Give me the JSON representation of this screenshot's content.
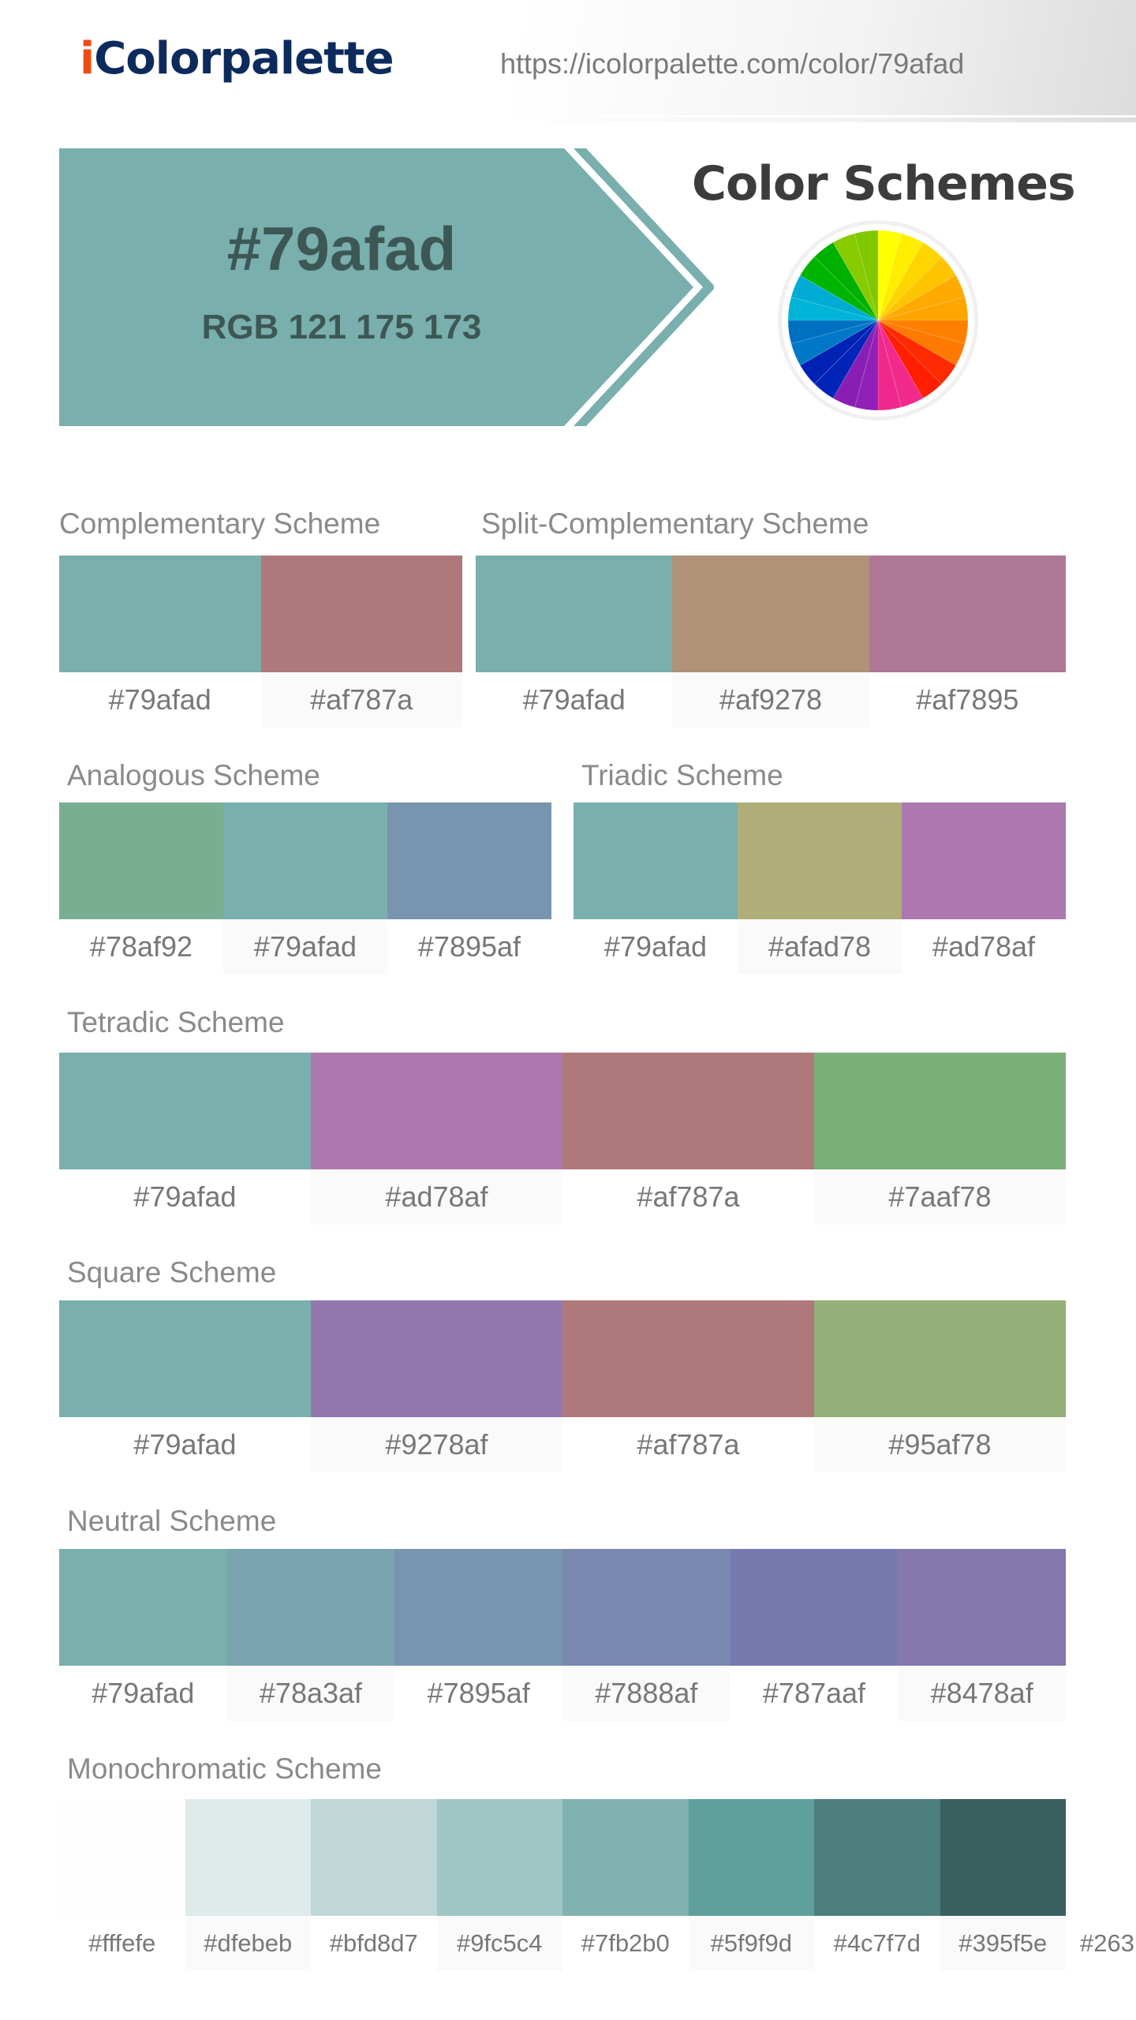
{
  "header": {
    "logo_prefix": "i",
    "logo_rest": "Colorpalette",
    "url": "https://icolorpalette.com/color/79afad"
  },
  "hero": {
    "hex": "#79afad",
    "rgb": "RGB 121 175 173",
    "color": "#79afad",
    "text_color": "#3d5755"
  },
  "color_schemes_title": "Color Schemes",
  "wheel_icon": "color-wheel-icon",
  "schemes": {
    "complementary": {
      "label": "Complementary Scheme",
      "colors": [
        "#79afad",
        "#af787a"
      ]
    },
    "split_complementary": {
      "label": "Split-Complementary Scheme",
      "colors": [
        "#79afad",
        "#af9278",
        "#af7895"
      ]
    },
    "analogous": {
      "label": "Analogous Scheme",
      "colors": [
        "#78af92",
        "#79afad",
        "#7895af"
      ]
    },
    "triadic": {
      "label": "Triadic Scheme",
      "colors": [
        "#79afad",
        "#afad78",
        "#ad78af"
      ]
    },
    "tetradic": {
      "label": "Tetradic Scheme",
      "colors": [
        "#79afad",
        "#ad78af",
        "#af787a",
        "#7aaf78"
      ]
    },
    "square": {
      "label": "Square Scheme",
      "colors": [
        "#79afad",
        "#9278af",
        "#af787a",
        "#95af78"
      ]
    },
    "neutral": {
      "label": "Neutral Scheme",
      "colors": [
        "#79afad",
        "#78a3af",
        "#7895af",
        "#7888af",
        "#787aaf",
        "#8478af"
      ]
    },
    "monochromatic": {
      "label": "Monochromatic Scheme",
      "colors": [
        "#fffefe",
        "#dfebeb",
        "#bfd8d7",
        "#9fc5c4",
        "#7fb2b0",
        "#5f9f9d",
        "#4c7f7d",
        "#395f5e",
        "#263"
      ]
    }
  }
}
